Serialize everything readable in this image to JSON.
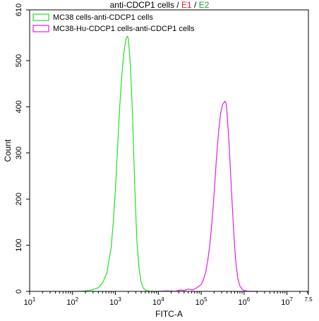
{
  "title": {
    "main": "anti-CDCP1 cells",
    "sep1": " / ",
    "e1": "E1",
    "sep2": " / ",
    "e2": "E2"
  },
  "colors": {
    "e1": "#e8202a",
    "e2": "#22a23a",
    "series_green": "#21e021",
    "series_magenta": "#e020e0",
    "axis": "#000000"
  },
  "chart_data": {
    "type": "line",
    "title": "anti-CDCP1 cells / E1 / E2",
    "xlabel": "FITC-A",
    "ylabel": "Count",
    "xscale": "log",
    "xlim": [
      1,
      7.5
    ],
    "ylim": [
      0,
      610
    ],
    "grid": false,
    "legend_position": "top-left",
    "x_ticks": [
      {
        "pos": 1,
        "base": "10",
        "exp": "1"
      },
      {
        "pos": 2,
        "base": "10",
        "exp": "2"
      },
      {
        "pos": 3,
        "base": "10",
        "exp": "3"
      },
      {
        "pos": 4,
        "base": "10",
        "exp": "4"
      },
      {
        "pos": 5,
        "base": "10",
        "exp": "5"
      },
      {
        "pos": 6,
        "base": "10",
        "exp": "6"
      },
      {
        "pos": 7,
        "base": "10",
        "exp": "7"
      },
      {
        "pos": 7.5,
        "base": "",
        "exp": "7.5"
      }
    ],
    "y_ticks": [
      0,
      100,
      200,
      300,
      400,
      500,
      610
    ],
    "series": [
      {
        "name": "MC38 cells-anti-CDCP1 cells",
        "color": "#21e021",
        "x": [
          2.0,
          2.15,
          2.3,
          2.45,
          2.6,
          2.7,
          2.8,
          2.9,
          2.95,
          3.0,
          3.05,
          3.1,
          3.15,
          3.2,
          3.25,
          3.28,
          3.3,
          3.35,
          3.4,
          3.45,
          3.5,
          3.55,
          3.6,
          3.65,
          3.7,
          3.75,
          3.85,
          4.0
        ],
        "y": [
          0,
          0,
          1,
          3,
          8,
          18,
          40,
          95,
          150,
          220,
          310,
          400,
          470,
          520,
          548,
          553,
          548,
          490,
          380,
          230,
          110,
          50,
          20,
          7,
          3,
          1,
          0,
          0
        ]
      },
      {
        "name": "MC38-Hu-CDCP1 cells-anti-CDCP1 cells",
        "color": "#e020e0",
        "x": [
          4.0,
          4.2,
          4.4,
          4.5,
          4.6,
          4.7,
          4.8,
          4.9,
          5.0,
          5.05,
          5.1,
          5.15,
          5.2,
          5.25,
          5.3,
          5.35,
          5.4,
          5.45,
          5.5,
          5.55,
          5.58,
          5.6,
          5.65,
          5.7,
          5.75,
          5.8,
          5.85,
          5.9,
          5.95,
          6.0,
          6.1,
          6.3
        ],
        "y": [
          0,
          1,
          0,
          3,
          2,
          5,
          3,
          8,
          15,
          25,
          40,
          65,
          100,
          150,
          210,
          280,
          340,
          385,
          405,
          412,
          408,
          390,
          320,
          230,
          140,
          70,
          30,
          12,
          5,
          2,
          0,
          0
        ]
      }
    ]
  }
}
